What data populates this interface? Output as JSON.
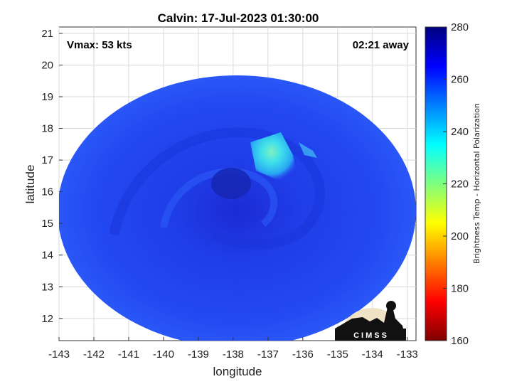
{
  "chart_data": {
    "type": "heatmap",
    "title": "Calvin: 17-Jul-2023 01:30:00",
    "xlabel": "longitude",
    "ylabel": "latitude",
    "xlim": [
      -143,
      -132.75
    ],
    "ylim": [
      11.3,
      21.2
    ],
    "x_ticks": [
      -143,
      -142,
      -141,
      -140,
      -139,
      -138,
      -137,
      -136,
      -135,
      -134,
      -133
    ],
    "y_ticks": [
      12,
      13,
      14,
      15,
      16,
      17,
      18,
      19,
      20,
      21
    ],
    "grid": true,
    "annotations": {
      "vmax": "Vmax: 53 kts",
      "time_away": "02:21 away"
    },
    "colorbar": {
      "label": "Brightness Temp - Horizontal Polarization",
      "ticks": [
        160,
        180,
        200,
        220,
        240,
        260,
        280
      ],
      "range": [
        160,
        280
      ],
      "colormap": "jet"
    },
    "swath": {
      "center_lon": -137.85,
      "center_lat": 16.2,
      "field": "mostly 255-268",
      "warm_core_min": 243
    },
    "logo_text": "CIMSS"
  },
  "colors": {
    "background_field": "#1a3ef0",
    "swath_edge": "#2b4ff5",
    "warm_feature": "#37d6ec",
    "eye": "#1726b5"
  }
}
